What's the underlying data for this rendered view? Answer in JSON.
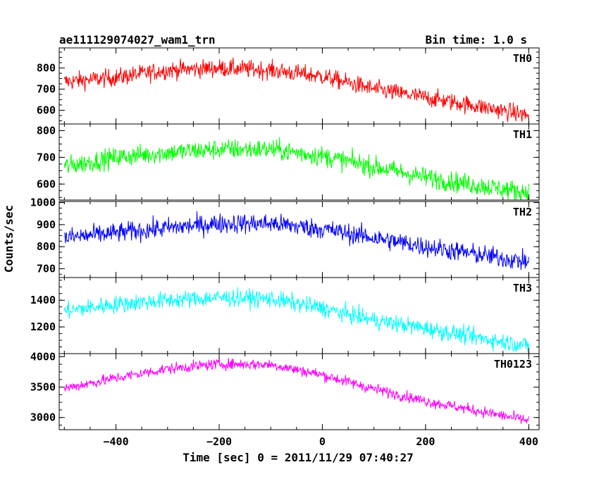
{
  "chart_data": {
    "type": "line",
    "title": "ae111129074027_wam1_trn",
    "bin_time": "Bin time: 1.0 s",
    "xlabel": "Time [sec] 0 = 2011/11/29 07:40:27",
    "ylabel": "Counts/sec",
    "xlim": [
      -510,
      420
    ],
    "x_ticks": [
      -400,
      -200,
      0,
      200,
      400
    ],
    "x_start": -500,
    "x_end": 400,
    "x_step": 1,
    "grid": false,
    "panels": [
      {
        "name": "TH0",
        "color": "#ff0000",
        "ylim": [
          535,
          895
        ],
        "y_ticks": [
          600,
          700,
          800
        ],
        "noise": 42,
        "trend": [
          [
            -500,
            735
          ],
          [
            -400,
            755
          ],
          [
            -300,
            790
          ],
          [
            -200,
            800
          ],
          [
            -100,
            790
          ],
          [
            0,
            760
          ],
          [
            100,
            700
          ],
          [
            200,
            660
          ],
          [
            300,
            620
          ],
          [
            400,
            575
          ]
        ]
      },
      {
        "name": "TH1",
        "color": "#00ff00",
        "ylim": [
          540,
          825
        ],
        "y_ticks": [
          600,
          700,
          800
        ],
        "noise": 38,
        "trend": [
          [
            -500,
            665
          ],
          [
            -400,
            700
          ],
          [
            -300,
            718
          ],
          [
            -200,
            730
          ],
          [
            -100,
            730
          ],
          [
            0,
            705
          ],
          [
            100,
            665
          ],
          [
            200,
            625
          ],
          [
            300,
            595
          ],
          [
            400,
            568
          ]
        ]
      },
      {
        "name": "TH2",
        "color": "#0000ff",
        "ylim": [
          660,
          1005
        ],
        "y_ticks": [
          700,
          800,
          900,
          1000
        ],
        "noise": 45,
        "trend": [
          [
            -500,
            840
          ],
          [
            -400,
            862
          ],
          [
            -300,
            885
          ],
          [
            -200,
            905
          ],
          [
            -100,
            905
          ],
          [
            0,
            880
          ],
          [
            100,
            840
          ],
          [
            200,
            800
          ],
          [
            300,
            765
          ],
          [
            400,
            730
          ]
        ]
      },
      {
        "name": "TH3",
        "color": "#00ffff",
        "ylim": [
          1000,
          1570
        ],
        "y_ticks": [
          1000,
          1200,
          1400
        ],
        "y_tick_labels": [
          "",
          "1200",
          "1400"
        ],
        "noise": 65,
        "trend": [
          [
            -500,
            1320
          ],
          [
            -400,
            1370
          ],
          [
            -300,
            1400
          ],
          [
            -200,
            1420
          ],
          [
            -100,
            1410
          ],
          [
            0,
            1340
          ],
          [
            100,
            1250
          ],
          [
            200,
            1190
          ],
          [
            300,
            1120
          ],
          [
            400,
            1060
          ]
        ]
      },
      {
        "name": "TH0123",
        "color": "#ff00ff",
        "ylim": [
          2800,
          4050
        ],
        "y_ticks": [
          3000,
          3500,
          4000
        ],
        "noise": 90,
        "trend": [
          [
            -500,
            3480
          ],
          [
            -400,
            3650
          ],
          [
            -300,
            3800
          ],
          [
            -200,
            3880
          ],
          [
            -100,
            3870
          ],
          [
            0,
            3700
          ],
          [
            100,
            3470
          ],
          [
            200,
            3270
          ],
          [
            300,
            3110
          ],
          [
            400,
            2950
          ]
        ]
      }
    ]
  }
}
